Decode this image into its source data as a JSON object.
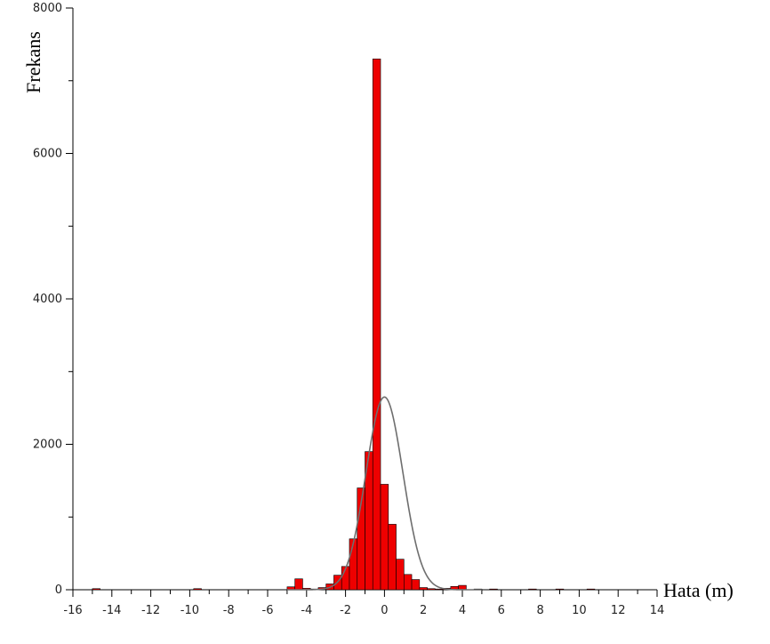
{
  "chart_data": {
    "type": "bar",
    "title": "",
    "xlabel": "Hata (m)",
    "ylabel": "Frekans",
    "xlim": [
      -16,
      14
    ],
    "ylim": [
      0,
      8000
    ],
    "x_ticks": [
      -16,
      -14,
      -12,
      -10,
      -8,
      -6,
      -4,
      -2,
      0,
      2,
      4,
      6,
      8,
      10,
      12,
      14
    ],
    "y_ticks": [
      0,
      2000,
      4000,
      6000,
      8000
    ],
    "x_tick_labels": [
      "-16",
      "-14",
      "-12",
      "-10",
      "-8",
      "-6",
      "-4",
      "-2",
      "0",
      "2",
      "4",
      "6",
      "8",
      "10",
      "12",
      "14"
    ],
    "y_tick_labels": [
      "0",
      "2000",
      "4000",
      "6000",
      "8000"
    ],
    "bin_width": 0.4,
    "bars": [
      {
        "x": -15.0,
        "value": 15
      },
      {
        "x": -9.8,
        "value": 15
      },
      {
        "x": -5.0,
        "value": 40
      },
      {
        "x": -4.6,
        "value": 150
      },
      {
        "x": -4.2,
        "value": 20
      },
      {
        "x": -3.8,
        "value": 10
      },
      {
        "x": -3.4,
        "value": 30
      },
      {
        "x": -3.0,
        "value": 80
      },
      {
        "x": -2.6,
        "value": 200
      },
      {
        "x": -2.2,
        "value": 320
      },
      {
        "x": -1.8,
        "value": 700
      },
      {
        "x": -1.4,
        "value": 1400
      },
      {
        "x": -1.0,
        "value": 1900
      },
      {
        "x": -0.6,
        "value": 7300
      },
      {
        "x": -0.2,
        "value": 1450
      },
      {
        "x": 0.2,
        "value": 900
      },
      {
        "x": 0.6,
        "value": 420
      },
      {
        "x": 1.0,
        "value": 210
      },
      {
        "x": 1.4,
        "value": 140
      },
      {
        "x": 1.8,
        "value": 30
      },
      {
        "x": 2.2,
        "value": 15
      },
      {
        "x": 2.6,
        "value": 10
      },
      {
        "x": 3.0,
        "value": 20
      },
      {
        "x": 3.4,
        "value": 45
      },
      {
        "x": 3.8,
        "value": 60
      },
      {
        "x": 4.6,
        "value": 10
      },
      {
        "x": 5.4,
        "value": 10
      },
      {
        "x": 7.4,
        "value": 10
      },
      {
        "x": 8.8,
        "value": 10
      },
      {
        "x": 10.4,
        "value": 10
      }
    ],
    "normal_curve": {
      "mean": 0.0,
      "peak": 2650,
      "sd": 0.95
    },
    "colors": {
      "bar_fill": "#ee0000",
      "bar_stroke": "#000000",
      "curve": "#6e6e6e",
      "axis": "#000000"
    }
  }
}
